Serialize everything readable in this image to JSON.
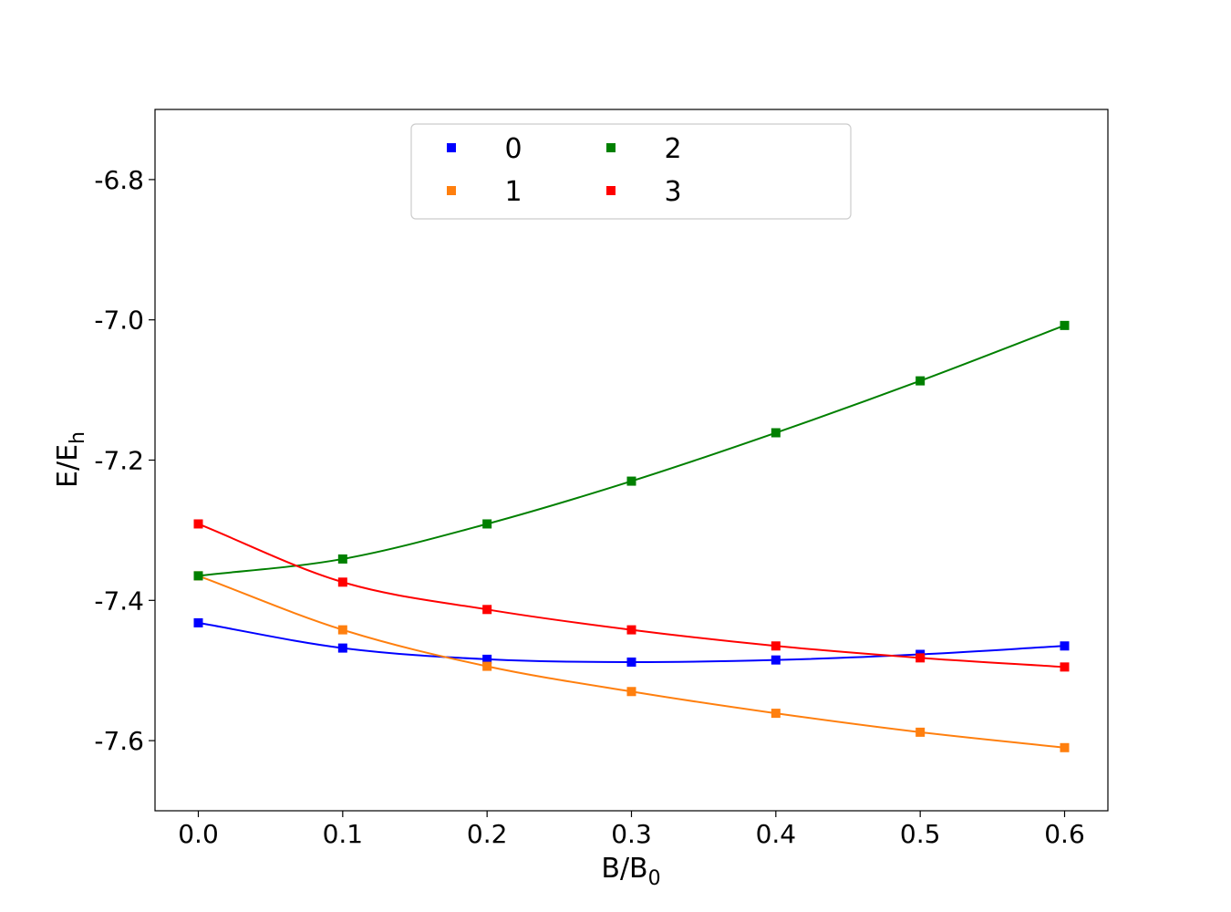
{
  "chart_data": {
    "type": "line",
    "xlabel": "B/B",
    "xlabel_sub": "0",
    "ylabel": "E/E",
    "ylabel_sub": "h",
    "xlim": [
      -0.03,
      0.63
    ],
    "ylim": [
      -7.7,
      -6.7
    ],
    "x_ticks": [
      0.0,
      0.1,
      0.2,
      0.3,
      0.4,
      0.5,
      0.6
    ],
    "x_tick_labels": [
      "0.0",
      "0.1",
      "0.2",
      "0.3",
      "0.4",
      "0.5",
      "0.6"
    ],
    "y_ticks": [
      -6.8,
      -7.0,
      -7.2,
      -7.4,
      -7.6
    ],
    "y_tick_labels": [
      "-6.8",
      "-7.0",
      "-7.2",
      "-7.4",
      "-7.6"
    ],
    "grid": false,
    "legend_position": "top-center",
    "legend_columns": 3,
    "marker": "square",
    "x": [
      0.0,
      0.1,
      0.2,
      0.3,
      0.4,
      0.5,
      0.6
    ],
    "series": [
      {
        "name": "0",
        "color": "#0000ff",
        "values": [
          -7.432,
          -7.468,
          -7.484,
          -7.488,
          -7.485,
          -7.477,
          -7.465
        ]
      },
      {
        "name": "1",
        "color": "#ff7f0e",
        "values": [
          -7.365,
          -7.442,
          -7.494,
          -7.53,
          -7.561,
          -7.588,
          -7.61
        ]
      },
      {
        "name": "2",
        "color": "#008000",
        "values": [
          -7.365,
          -7.341,
          -7.291,
          -7.23,
          -7.161,
          -7.087,
          -7.008
        ]
      },
      {
        "name": "3",
        "color": "#ff0000",
        "values": [
          -7.291,
          -7.374,
          -7.413,
          -7.442,
          -7.465,
          -7.482,
          -7.495
        ]
      }
    ]
  }
}
